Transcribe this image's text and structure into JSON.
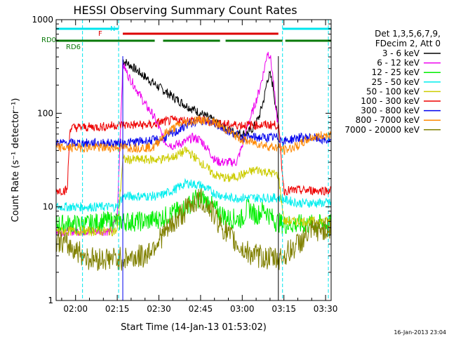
{
  "chart_data": {
    "type": "line",
    "title": "HESSI Observing Summary Count Rates",
    "xlabel": "Start Time (14-Jan-13 01:53:02)",
    "ylabel": "Count Rate (s⁻¹ detector⁻¹)",
    "ylog": true,
    "ylim": [
      1,
      1000
    ],
    "xlim_minutes": [
      113,
      212
    ],
    "x_ticks": [
      {
        "label": "02:00",
        "minute": 120
      },
      {
        "label": "02:15",
        "minute": 135
      },
      {
        "label": "02:30",
        "minute": 150
      },
      {
        "label": "02:45",
        "minute": 165
      },
      {
        "label": "03:00",
        "minute": 180
      },
      {
        "label": "03:15",
        "minute": 195
      },
      {
        "label": "03:30",
        "minute": 210
      }
    ],
    "y_ticks": [
      {
        "label": "1",
        "value": 1
      },
      {
        "label": "10",
        "value": 10
      },
      {
        "label": "100",
        "value": 100
      },
      {
        "label": "1000",
        "value": 1000
      }
    ],
    "grid": false,
    "legend_header": [
      "Det 1,3,5,6,7,9,",
      "FDecim 2, Att 0"
    ],
    "legend_placement": "right",
    "flag_bars": {
      "N": {
        "label": "N",
        "color": "#00e5ee",
        "segments": [
          [
            113,
            135.5
          ],
          [
            194.5,
            212
          ]
        ]
      },
      "F": {
        "label": "F",
        "color": "#dd0000",
        "segments": [
          [
            137,
            193
          ]
        ]
      },
      "RD0": {
        "label": "RD0",
        "color": "#0a7a0a",
        "segments": [
          [
            113,
            148.5
          ],
          [
            151.5,
            172
          ],
          [
            174,
            194.5
          ],
          [
            195.5,
            212
          ]
        ]
      },
      "RD6": {
        "label": "RD6",
        "color": "#0a7a0a"
      }
    },
    "night_boundaries_minutes": [
      122.5,
      135.5,
      194.5,
      211
    ],
    "saa_lines_minutes": [
      137,
      193
    ],
    "series": [
      {
        "name": "3 - 6 keV",
        "color": "#000000",
        "x": [
          137,
          140,
          145,
          150,
          155,
          160,
          165,
          170,
          174,
          176,
          178,
          180,
          182,
          184,
          186,
          188,
          189,
          190,
          191,
          192,
          193
        ],
        "y": [
          370,
          320,
          245,
          190,
          150,
          120,
          100,
          82,
          70,
          65,
          62,
          60,
          62,
          70,
          90,
          150,
          230,
          260,
          200,
          120,
          80
        ]
      },
      {
        "name": "6 - 12 keV",
        "color": "#ee00ee",
        "x": [
          113,
          133,
          134,
          135,
          137,
          139,
          142,
          145,
          148,
          150,
          152,
          155,
          158,
          160,
          162,
          165,
          168,
          170,
          172,
          175,
          178,
          180,
          182,
          184,
          186,
          188,
          189,
          190,
          191,
          192,
          193
        ],
        "y": [
          5.5,
          5.5,
          7,
          8,
          340,
          250,
          180,
          125,
          95,
          70,
          50,
          45,
          48,
          50,
          55,
          52,
          40,
          32,
          30,
          30,
          30,
          45,
          75,
          110,
          170,
          300,
          450,
          420,
          250,
          120,
          70
        ]
      },
      {
        "name": "12 - 25 keV",
        "color": "#00ee00",
        "x": [
          113,
          125,
          130,
          135,
          137,
          140,
          145,
          150,
          155,
          160,
          163,
          165,
          168,
          170,
          175,
          180,
          182,
          185,
          188,
          190,
          192,
          195,
          200,
          205,
          212
        ],
        "y": [
          6.5,
          6.5,
          7,
          7,
          7,
          7,
          7,
          7.5,
          8.5,
          10,
          12,
          12.5,
          11,
          9.5,
          7.5,
          7.5,
          10,
          8,
          9.5,
          8,
          7,
          6.5,
          6.5,
          6.5,
          6.5
        ]
      },
      {
        "name": "25 - 50 keV",
        "color": "#00eeee",
        "x": [
          113,
          125,
          135,
          137,
          150,
          155,
          160,
          165,
          170,
          175,
          180,
          185,
          193,
          195,
          200,
          212
        ],
        "y": [
          10,
          10,
          10,
          13,
          13,
          15,
          18,
          17,
          14,
          12.5,
          12.5,
          12.5,
          12.5,
          12,
          11,
          11
        ]
      },
      {
        "name": "50 - 100 keV",
        "color": "#cccc00",
        "x": [
          113,
          130,
          135,
          137,
          150,
          155,
          160,
          165,
          170,
          175,
          180,
          185,
          193,
          195,
          200,
          205,
          212
        ],
        "y": [
          5.5,
          5.5,
          5.5,
          32,
          32,
          34,
          40,
          30,
          22,
          20,
          22,
          25,
          22,
          7,
          7,
          7,
          7
        ]
      },
      {
        "name": "100 - 300 keV",
        "color": "#ee0000",
        "x": [
          113,
          117,
          118,
          130,
          135,
          137,
          148,
          150,
          155,
          160,
          165,
          170,
          175,
          180,
          185,
          190,
          193,
          195,
          200,
          205,
          212
        ],
        "y": [
          15,
          15,
          70,
          72,
          75,
          75,
          75,
          80,
          84,
          84,
          84,
          80,
          75,
          75,
          75,
          75,
          75,
          15,
          15,
          15,
          15
        ]
      },
      {
        "name": "300 - 800 keV",
        "color": "#0000ee",
        "x": [
          113,
          125,
          130,
          135,
          137,
          150,
          155,
          160,
          165,
          170,
          175,
          180,
          185,
          190,
          193,
          195,
          200,
          205,
          212
        ],
        "y": [
          48,
          48,
          48,
          48,
          48,
          52,
          60,
          75,
          85,
          78,
          65,
          55,
          55,
          55,
          55,
          50,
          55,
          55,
          50
        ]
      },
      {
        "name": "800 - 7000 keV",
        "color": "#ff8800",
        "x": [
          113,
          125,
          130,
          135,
          137,
          148,
          152,
          158,
          165,
          170,
          175,
          180,
          185,
          190,
          193,
          195,
          200,
          205,
          212
        ],
        "y": [
          43,
          43,
          43,
          43,
          43,
          43,
          60,
          78,
          86,
          80,
          65,
          52,
          48,
          44,
          43,
          40,
          45,
          55,
          60
        ]
      },
      {
        "name": "7000 - 20000 keV",
        "color": "#808000",
        "x": [
          113,
          120,
          125,
          130,
          137,
          145,
          150,
          155,
          160,
          163,
          165,
          168,
          170,
          175,
          180,
          185,
          190,
          193,
          195,
          200,
          205,
          212
        ],
        "y": [
          4.5,
          3.5,
          2.8,
          2.8,
          2.8,
          3,
          4.5,
          6.5,
          9.5,
          11.5,
          12,
          10,
          8,
          5,
          3.5,
          3,
          2.8,
          2.8,
          3,
          4,
          5.5,
          6
        ]
      }
    ]
  },
  "footer_date": "16-Jan-2013 23:04"
}
